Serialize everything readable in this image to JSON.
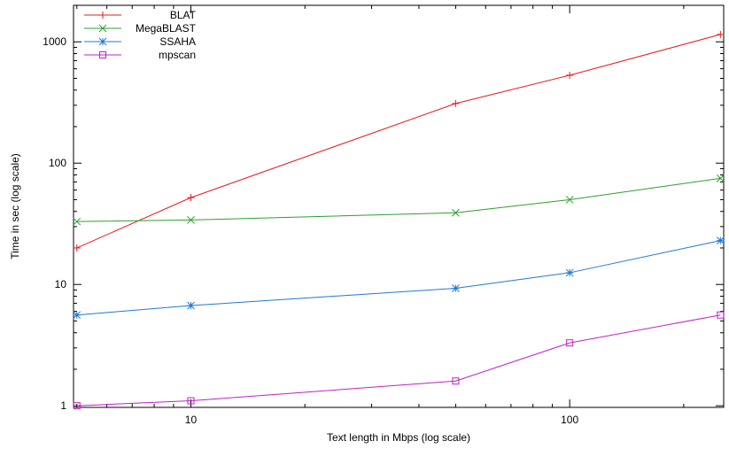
{
  "chart_data": {
    "type": "line",
    "title": "",
    "xlabel": "Text length in Mbps (log scale)",
    "ylabel": "Time in sec (log scale)",
    "x_scale": "log",
    "y_scale": "log",
    "xlim": [
      4.9,
      255
    ],
    "ylim": [
      0.97,
      2000
    ],
    "xticks": [
      10,
      100
    ],
    "yticks": [
      1,
      10,
      100,
      1000
    ],
    "grid": false,
    "legend_position": "top-left",
    "x": [
      5,
      10,
      50,
      100,
      250
    ],
    "series": [
      {
        "name": "BLAT",
        "values": [
          20,
          52,
          310,
          530,
          1150
        ],
        "color": "#e41a1c",
        "marker": "plus"
      },
      {
        "name": "MegaBLAST",
        "values": [
          33,
          34,
          39,
          50,
          75
        ],
        "color": "#2ca02c",
        "marker": "cross"
      },
      {
        "name": "SSAHA",
        "values": [
          5.6,
          6.7,
          9.3,
          12.5,
          23
        ],
        "color": "#1f78d4",
        "marker": "star"
      },
      {
        "name": "mpscan",
        "values": [
          1.0,
          1.1,
          1.6,
          3.3,
          5.6
        ],
        "color": "#c020c8",
        "marker": "square"
      }
    ]
  }
}
